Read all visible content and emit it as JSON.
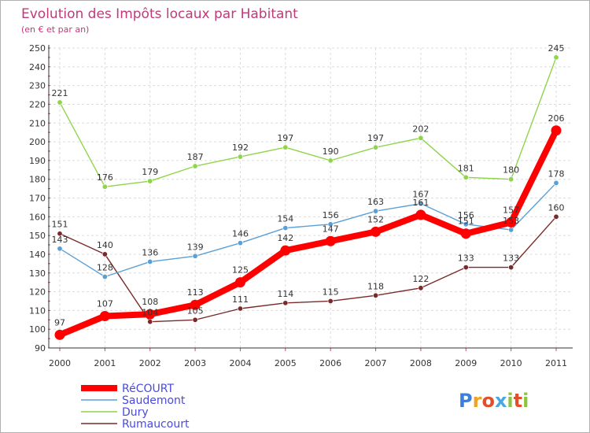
{
  "chart_data": {
    "type": "line",
    "title": "Evolution des Impôts locaux par Habitant",
    "subtitle": "(en € et par an)",
    "xlabel": "",
    "ylabel": "",
    "x": [
      "2000",
      "2001",
      "2002",
      "2003",
      "2004",
      "2005",
      "2006",
      "2007",
      "2008",
      "2009",
      "2010",
      "2011"
    ],
    "ylim": [
      90,
      250
    ],
    "yticks": [
      90,
      100,
      110,
      120,
      130,
      140,
      150,
      160,
      170,
      180,
      190,
      200,
      210,
      220,
      230,
      240,
      250
    ],
    "grid": true,
    "legend_position": "bottom-left",
    "series": [
      {
        "name": "RéCOURT",
        "color": "#ff0000",
        "values": [
          97,
          107,
          108,
          113,
          125,
          142,
          147,
          152,
          161,
          151,
          157,
          206
        ]
      },
      {
        "name": "Saudemont",
        "color": "#5aa0d6",
        "values": [
          143,
          128,
          136,
          139,
          146,
          154,
          156,
          163,
          167,
          156,
          153,
          178
        ]
      },
      {
        "name": "Dury",
        "color": "#8fd44a",
        "values": [
          221,
          176,
          179,
          187,
          192,
          197,
          190,
          197,
          202,
          181,
          180,
          245
        ]
      },
      {
        "name": "Rumaucourt",
        "color": "#7a2a2a",
        "values": [
          151,
          140,
          104,
          105,
          111,
          114,
          115,
          118,
          122,
          133,
          133,
          160
        ]
      }
    ]
  },
  "logo": {
    "text": "Proxiti"
  }
}
